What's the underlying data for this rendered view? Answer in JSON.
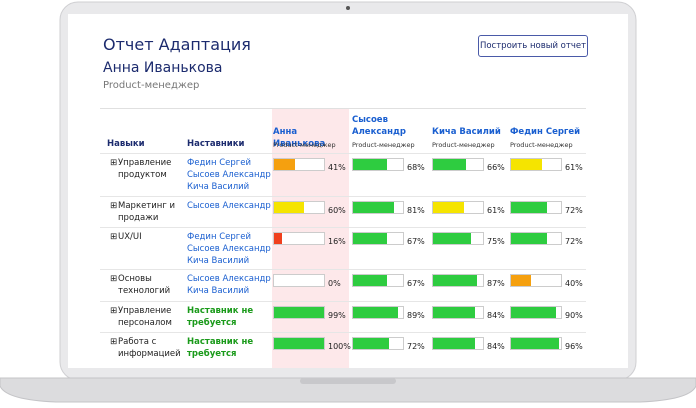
{
  "header": {
    "title": "Отчет Адаптация",
    "name": "Анна Иванькова",
    "role": "Product-менеджер",
    "button": "Построить новый отчет"
  },
  "table": {
    "columns": [
      "Навыки",
      "Наставники"
    ],
    "people": [
      {
        "name": "Анна Иванькова",
        "role": "Product-менеджер"
      },
      {
        "name": "Сысоев Александр",
        "role": "Product-менеджер"
      },
      {
        "name": "Кича Василий",
        "role": "Product-менеджер"
      },
      {
        "name": "Федин Сергей",
        "role": "Product-менеджер"
      }
    ],
    "rows": [
      {
        "skill": "Управление продуктом",
        "mentors": [
          "Федин Сергей",
          "Сысоев Александр",
          "Кича Василий"
        ],
        "scores": [
          {
            "value": 41,
            "label": "41%",
            "color": "#f5a00f"
          },
          {
            "value": 68,
            "label": "68%",
            "color": "#2ecc40"
          },
          {
            "value": 66,
            "label": "66%",
            "color": "#2ecc40"
          },
          {
            "value": 61,
            "label": "61%",
            "color": "#f5e400"
          }
        ]
      },
      {
        "skill": "Маркетинг и продажи",
        "mentors": [
          "Сысоев Александр"
        ],
        "scores": [
          {
            "value": 60,
            "label": "60%",
            "color": "#f5e400"
          },
          {
            "value": 81,
            "label": "81%",
            "color": "#2ecc40"
          },
          {
            "value": 61,
            "label": "61%",
            "color": "#f5e400"
          },
          {
            "value": 72,
            "label": "72%",
            "color": "#2ecc40"
          }
        ]
      },
      {
        "skill": "UX/UI",
        "mentors": [
          "Федин Сергей",
          "Сысоев Александр",
          "Кича Василий"
        ],
        "scores": [
          {
            "value": 16,
            "label": "16%",
            "color": "#f0401e"
          },
          {
            "value": 67,
            "label": "67%",
            "color": "#2ecc40"
          },
          {
            "value": 75,
            "label": "75%",
            "color": "#2ecc40"
          },
          {
            "value": 72,
            "label": "72%",
            "color": "#2ecc40"
          }
        ]
      },
      {
        "skill": "Основы технологий",
        "mentors": [
          "Сысоев Александр",
          "Кича Василий"
        ],
        "scores": [
          {
            "value": 0,
            "label": "0%"
          },
          {
            "value": 67,
            "label": "67%",
            "color": "#2ecc40"
          },
          {
            "value": 87,
            "label": "87%",
            "color": "#2ecc40"
          },
          {
            "value": 40,
            "label": "40%",
            "color": "#f5a00f"
          }
        ]
      },
      {
        "skill": "Управление персоналом",
        "mentor_note": "Наставник не требуется",
        "scores": [
          {
            "value": 99,
            "label": "99%",
            "color": "#2ecc40"
          },
          {
            "value": 89,
            "label": "89%",
            "color": "#2ecc40"
          },
          {
            "value": 84,
            "label": "84%",
            "color": "#2ecc40"
          },
          {
            "value": 90,
            "label": "90%",
            "color": "#2ecc40"
          }
        ]
      },
      {
        "skill": "Работа с информацией",
        "mentor_note": "Наставник не требуется",
        "scores": [
          {
            "value": 100,
            "label": "100%",
            "color": "#2ecc40"
          },
          {
            "value": 72,
            "label": "72%",
            "color": "#2ecc40"
          },
          {
            "value": 84,
            "label": "84%",
            "color": "#2ecc40"
          },
          {
            "value": 96,
            "label": "96%",
            "color": "#2ecc40"
          }
        ]
      }
    ]
  }
}
